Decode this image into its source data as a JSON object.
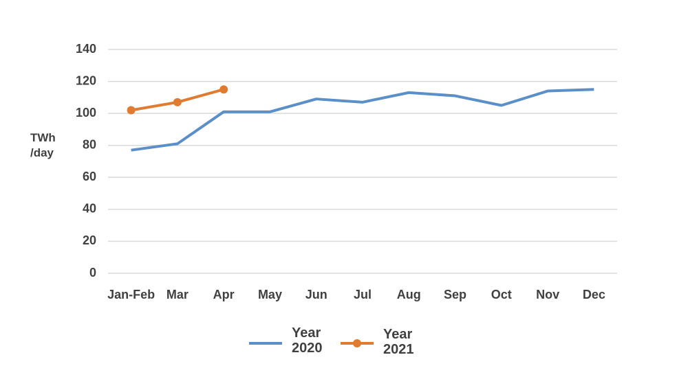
{
  "chart_data": {
    "type": "line",
    "y_label": "TWh /day",
    "categories": [
      "Jan-Feb",
      "Mar",
      "Apr",
      "May",
      "Jun",
      "Jul",
      "Aug",
      "Sep",
      "Oct",
      "Nov",
      "Dec"
    ],
    "series": [
      {
        "name": "Year 2020",
        "color": "#5b8fc7",
        "marker": false,
        "values": [
          77,
          81,
          101,
          101,
          109,
          107,
          113,
          111,
          105,
          114,
          115
        ]
      },
      {
        "name": "Year 2021",
        "color": "#e07b32",
        "marker": true,
        "values": [
          102,
          107,
          115,
          null,
          null,
          null,
          null,
          null,
          null,
          null,
          null
        ]
      }
    ],
    "ylim": [
      0,
      140
    ],
    "yticks": [
      0,
      20,
      40,
      60,
      80,
      100,
      120,
      140
    ],
    "grid": true
  }
}
